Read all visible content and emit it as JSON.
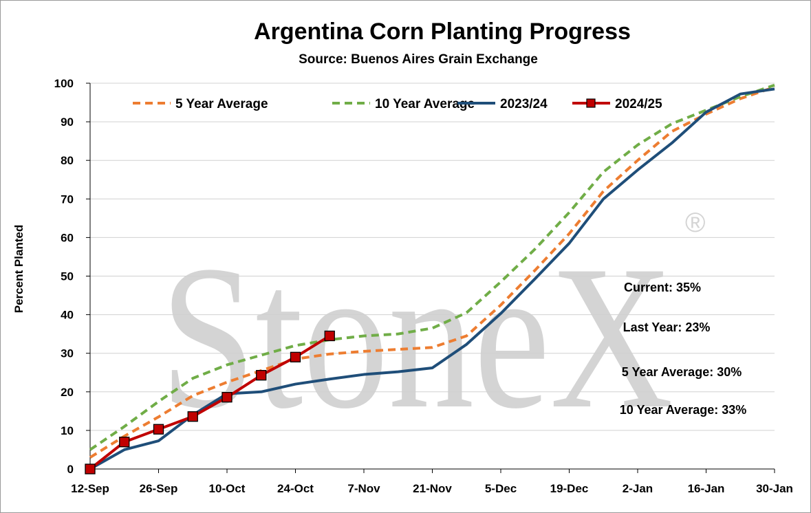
{
  "chart_data": {
    "type": "line",
    "title": "Argentina Corn Planting Progress",
    "subtitle": "Source: Buenos Aires Grain Exchange",
    "ylabel": "Percent Planted",
    "xlabel": "",
    "ylim": [
      0,
      100
    ],
    "yticks": [
      0,
      10,
      20,
      30,
      40,
      50,
      60,
      70,
      80,
      90,
      100
    ],
    "x_tick_labels": [
      "12-Sep",
      "26-Sep",
      "10-Oct",
      "24-Oct",
      "7-Nov",
      "21-Nov",
      "5-Dec",
      "19-Dec",
      "2-Jan",
      "16-Jan",
      "30-Jan"
    ],
    "x_points": [
      "12-Sep",
      "19-Sep",
      "26-Sep",
      "3-Oct",
      "10-Oct",
      "17-Oct",
      "24-Oct",
      "31-Oct",
      "7-Nov",
      "14-Nov",
      "21-Nov",
      "28-Nov",
      "5-Dec",
      "12-Dec",
      "19-Dec",
      "26-Dec",
      "2-Jan",
      "9-Jan",
      "16-Jan",
      "23-Jan",
      "30-Jan"
    ],
    "grid": "horizontal",
    "legend_position": "top",
    "series": [
      {
        "name": "5 Year Average",
        "color": "#ED7D31",
        "style": "dashed",
        "values": [
          3,
          8.5,
          13.5,
          19,
          22.5,
          25.5,
          28.5,
          29.8,
          30.5,
          31,
          31.5,
          34.5,
          42.5,
          51.5,
          61,
          72,
          80,
          87.5,
          92,
          96,
          99
        ]
      },
      {
        "name": "10 Year Average",
        "color": "#70AD47",
        "style": "dashed",
        "values": [
          5,
          11,
          17.5,
          23.5,
          27,
          29.5,
          32,
          33.5,
          34.5,
          35,
          36.5,
          40.5,
          48.5,
          57,
          66.5,
          77,
          84,
          89.5,
          93,
          96.5,
          99.5
        ]
      },
      {
        "name": "2023/24",
        "color": "#1F4E79",
        "style": "solid",
        "values": [
          0,
          5,
          7.3,
          14,
          19.5,
          20,
          22,
          23.3,
          24.5,
          25.2,
          26.2,
          32.3,
          40.3,
          49.3,
          58.5,
          70,
          77.5,
          84.5,
          92.5,
          97.2,
          98.5
        ]
      },
      {
        "name": "2024/25",
        "color": "#C00000",
        "marker_fill": "#C00000",
        "style": "solid-marker",
        "values": [
          0,
          7,
          10.3,
          13.6,
          18.6,
          24.3,
          29,
          34.5
        ]
      }
    ],
    "annotations": [
      "Current: 35%",
      "Last Year: 23%",
      "5 Year Average: 30%",
      "10 Year Average: 33%"
    ]
  },
  "watermark": {
    "text": "StoneX",
    "mark": "®"
  }
}
